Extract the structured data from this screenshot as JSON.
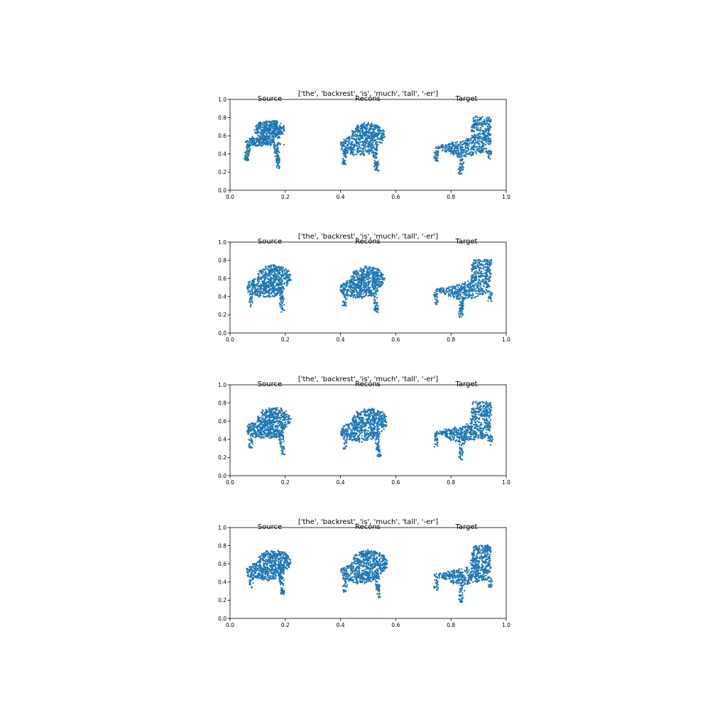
{
  "accent_color": "#1f77b4",
  "chart_data": [
    {
      "type": "scatter",
      "title": "['the', 'backrest', 'is', 'much', 'tall', '-er']",
      "column_labels": [
        "Source",
        "Recons",
        "Target"
      ],
      "xlim": [
        0.0,
        1.0
      ],
      "ylim": [
        0.0,
        1.0
      ],
      "xticks": [
        "0.0",
        "0.2",
        "0.4",
        "0.6",
        "0.8",
        "1.0"
      ],
      "yticks": [
        "0.0",
        "0.2",
        "0.4",
        "0.6",
        "0.8",
        "1.0"
      ],
      "grid": false,
      "series": [
        {
          "shape": "lounge-chair",
          "x_range": [
            0.05,
            0.2
          ],
          "y_range": [
            0.22,
            0.76
          ],
          "seed": 11
        },
        {
          "shape": "blob-chair",
          "x_range": [
            0.4,
            0.56
          ],
          "y_range": [
            0.21,
            0.75
          ],
          "seed": 12
        },
        {
          "shape": "slat-chair",
          "x_range": [
            0.74,
            0.95
          ],
          "y_range": [
            0.17,
            0.81
          ],
          "seed": 13
        }
      ]
    },
    {
      "type": "scatter",
      "title": "['the', 'backrest', 'is', 'much', 'tall', '-er']",
      "column_labels": [
        "Source",
        "Recons",
        "Target"
      ],
      "xlim": [
        0.0,
        1.0
      ],
      "ylim": [
        0.0,
        1.0
      ],
      "xticks": [
        "0.0",
        "0.2",
        "0.4",
        "0.6",
        "0.8",
        "1.0"
      ],
      "yticks": [
        "0.0",
        "0.2",
        "0.4",
        "0.6",
        "0.8",
        "1.0"
      ],
      "grid": false,
      "series": [
        {
          "shape": "blob-chair",
          "x_range": [
            0.06,
            0.22
          ],
          "y_range": [
            0.22,
            0.76
          ],
          "seed": 21
        },
        {
          "shape": "blob-chair",
          "x_range": [
            0.4,
            0.56
          ],
          "y_range": [
            0.22,
            0.74
          ],
          "seed": 22
        },
        {
          "shape": "slat-chair",
          "x_range": [
            0.74,
            0.95
          ],
          "y_range": [
            0.17,
            0.81
          ],
          "seed": 23
        }
      ]
    },
    {
      "type": "scatter",
      "title": "['the', 'backrest', 'is', 'much', 'tall', '-er']",
      "column_labels": [
        "Source",
        "Recons",
        "Target"
      ],
      "xlim": [
        0.0,
        1.0
      ],
      "ylim": [
        0.0,
        1.0
      ],
      "xticks": [
        "0.0",
        "0.2",
        "0.4",
        "0.6",
        "0.8",
        "1.0"
      ],
      "yticks": [
        "0.0",
        "0.2",
        "0.4",
        "0.6",
        "0.8",
        "1.0"
      ],
      "grid": false,
      "series": [
        {
          "shape": "blob-chair",
          "x_range": [
            0.06,
            0.22
          ],
          "y_range": [
            0.23,
            0.76
          ],
          "seed": 31
        },
        {
          "shape": "blob-chair",
          "x_range": [
            0.4,
            0.57
          ],
          "y_range": [
            0.2,
            0.75
          ],
          "seed": 32
        },
        {
          "shape": "slat-chair",
          "x_range": [
            0.74,
            0.95
          ],
          "y_range": [
            0.17,
            0.81
          ],
          "seed": 33
        }
      ]
    },
    {
      "type": "scatter",
      "title": "['the', 'backrest', 'is', 'much', 'tall', '-er']",
      "column_labels": [
        "Source",
        "Recons",
        "Target"
      ],
      "xlim": [
        0.0,
        1.0
      ],
      "ylim": [
        0.0,
        1.0
      ],
      "xticks": [
        "0.0",
        "0.2",
        "0.4",
        "0.6",
        "0.8",
        "1.0"
      ],
      "yticks": [
        "0.0",
        "0.2",
        "0.4",
        "0.6",
        "0.8",
        "1.0"
      ],
      "grid": false,
      "series": [
        {
          "shape": "blob-chair",
          "x_range": [
            0.06,
            0.22
          ],
          "y_range": [
            0.26,
            0.76
          ],
          "seed": 41
        },
        {
          "shape": "blob-chair",
          "x_range": [
            0.4,
            0.57
          ],
          "y_range": [
            0.21,
            0.76
          ],
          "seed": 42
        },
        {
          "shape": "slat-chair",
          "x_range": [
            0.74,
            0.95
          ],
          "y_range": [
            0.17,
            0.81
          ],
          "seed": 43
        }
      ]
    }
  ]
}
